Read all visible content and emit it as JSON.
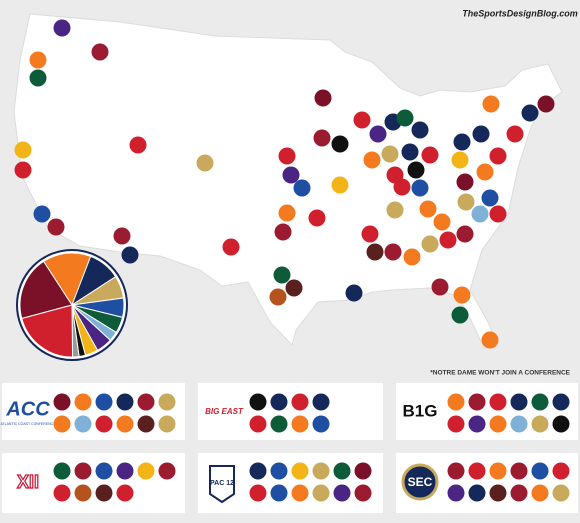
{
  "watermark": "TheSportsDesignBlog.com",
  "note": "*NOTRE DAME WON'T JOIN A CONFERENCE",
  "conferences": [
    {
      "logo": "ACC",
      "sub": "ATLANTIC COAST CONFERENCE"
    },
    {
      "logo": "BIG EAST"
    },
    {
      "logo": "B1G"
    },
    {
      "logo": "XII"
    },
    {
      "logo": "PAC 12"
    },
    {
      "logo": "SEC"
    }
  ],
  "chart_data": {
    "type": "pie",
    "values": [
      20,
      15,
      10,
      7,
      6,
      5,
      3,
      5,
      4,
      2,
      2,
      21
    ],
    "colors": [
      "#7a1128",
      "#f47a20",
      "#14285a",
      "#c9a95c",
      "#1f4fa3",
      "#0e5b3a",
      "#7fb0d6",
      "#4b2583",
      "#f2b416",
      "#111111",
      "#9a9a9a",
      "#d0202e"
    ]
  }
}
